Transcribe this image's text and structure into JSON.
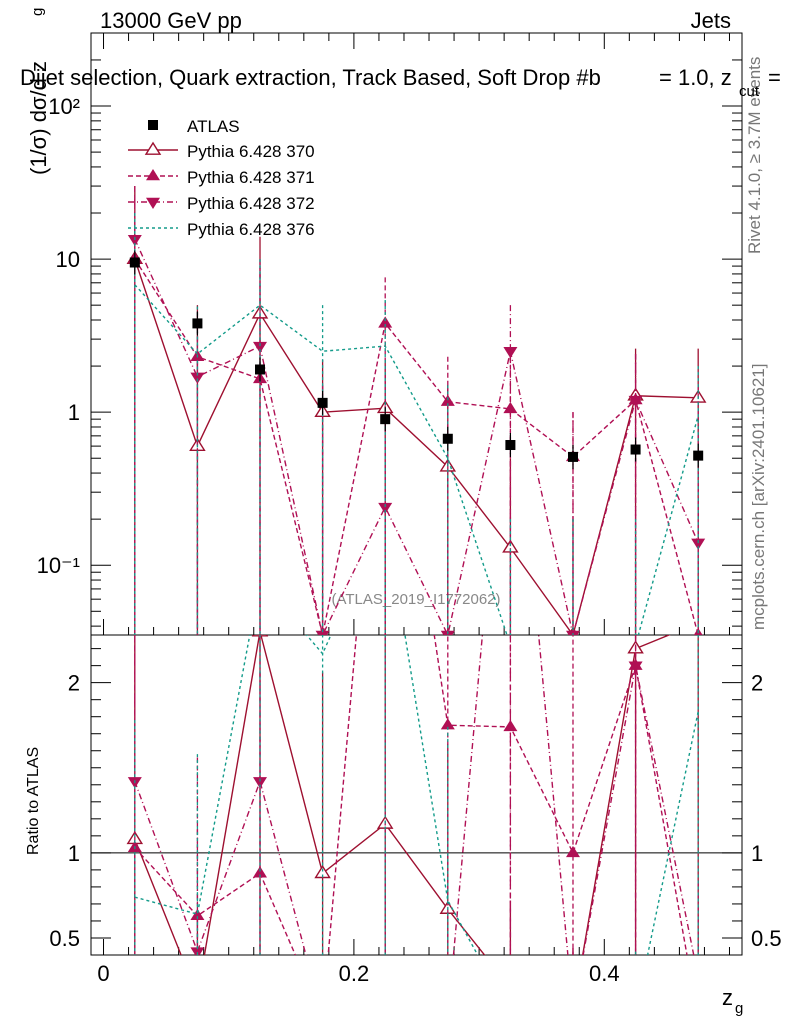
{
  "header": {
    "left": "13000 GeV pp",
    "right": "Jets"
  },
  "side": {
    "rivet": "Rivet 4.1.0, ≥ 3.7M events",
    "mcplots": "mcplots.cern.ch [arXiv:2401.10621]"
  },
  "chart_data": {
    "type": "scatter",
    "title": "Dijet selection, Quark extraction, Track Based, Soft Drop #beta = 1.0, z_cut =",
    "title_main": "Dijet selection, Quark extraction, Track Based, Soft Drop #b",
    "title_suffix": "= 1.0, z",
    "title_sub": "cut",
    "title_end": "=",
    "watermark": "(ATLAS_2019_I1772062)",
    "xlabel": "z",
    "xlabel_sub": "g",
    "ylabel_main": "(1/σ) dσ/d z",
    "ylabel_sub": "g",
    "ratio_ylabel": "Ratio to ATLAS",
    "xlim": [
      -0.01,
      0.51
    ],
    "ylim": [
      0.035,
      300
    ],
    "ratio_ylim": [
      0.4,
      2.28
    ],
    "x_ticks": [
      "0",
      "0.2",
      "0.4"
    ],
    "y_ticks": [
      "10⁻¹",
      "1",
      "10",
      "10²"
    ],
    "ratio_ticks": [
      "0.5",
      "1",
      "2"
    ],
    "x": [
      0.025,
      0.075,
      0.125,
      0.175,
      0.225,
      0.275,
      0.325,
      0.375,
      0.425,
      0.475
    ],
    "series": [
      {
        "name": "ATLAS",
        "color": "#000000",
        "marker": "square",
        "values": [
          9.5,
          3.8,
          1.9,
          1.15,
          0.9,
          0.67,
          0.61,
          0.51,
          0.57,
          0.52
        ]
      },
      {
        "name": "Pythia 6.428 370",
        "color": "#9e1030",
        "marker": "triangle-up-open",
        "dash": "",
        "values": [
          10.0,
          0.6,
          4.4,
          1.0,
          1.06,
          0.44,
          0.13,
          0.035,
          1.28,
          1.24
        ],
        "err_hi": [
          30,
          5,
          14,
          2.2,
          2.2,
          1.5,
          0.5,
          0.2,
          2.6,
          2.6
        ],
        "ratio": [
          1.08,
          0.16,
          2.3,
          0.88,
          1.17,
          0.67,
          0.21,
          0.07,
          2.2,
          2.35
        ]
      },
      {
        "name": "Pythia 6.428 371",
        "color": "#b01054",
        "marker": "triangle-up",
        "dash": "5,3",
        "values": [
          10.0,
          2.3,
          1.65,
          0.035,
          3.8,
          1.17,
          1.05,
          0.51,
          1.2,
          0.035
        ],
        "err_hi": [
          26,
          4.5,
          9,
          1.5,
          7.6,
          2.3,
          2.3,
          1.0,
          2.4,
          1.5
        ],
        "ratio": [
          1.03,
          0.63,
          0.88,
          0.03,
          4.2,
          1.75,
          1.74,
          1.0,
          2.1,
          0.03
        ]
      },
      {
        "name": "Pythia 6.428 372",
        "color": "#b01054",
        "marker": "triangle-down",
        "dash": "6,3,1,3",
        "values": [
          13.5,
          1.7,
          2.7,
          0.035,
          0.24,
          0.035,
          2.5,
          0.035,
          1.2,
          0.14
        ],
        "err_hi": [
          30,
          3.8,
          10,
          1.5,
          1.8,
          1.5,
          5,
          1.0,
          2.4,
          0.6
        ],
        "ratio": [
          1.42,
          0.42,
          1.42,
          0.03,
          0.27,
          0.03,
          4.1,
          0.07,
          2.1,
          0.27
        ]
      },
      {
        "name": "Pythia 6.428 376",
        "color": "#139b8a",
        "marker": "none",
        "dash": "3,3",
        "values": [
          6.8,
          2.4,
          5.0,
          2.5,
          2.7,
          0.5,
          0.03,
          0.03,
          0.03,
          0.95
        ],
        "err_hi": [
          20,
          4.9,
          10,
          5,
          5.4,
          1.5,
          0.2,
          0.2,
          0.2,
          2.0
        ],
        "ratio": [
          0.74,
          0.64,
          2.6,
          2.17,
          3.0,
          0.72,
          0.05,
          0.05,
          0.06,
          1.83
        ]
      }
    ]
  }
}
